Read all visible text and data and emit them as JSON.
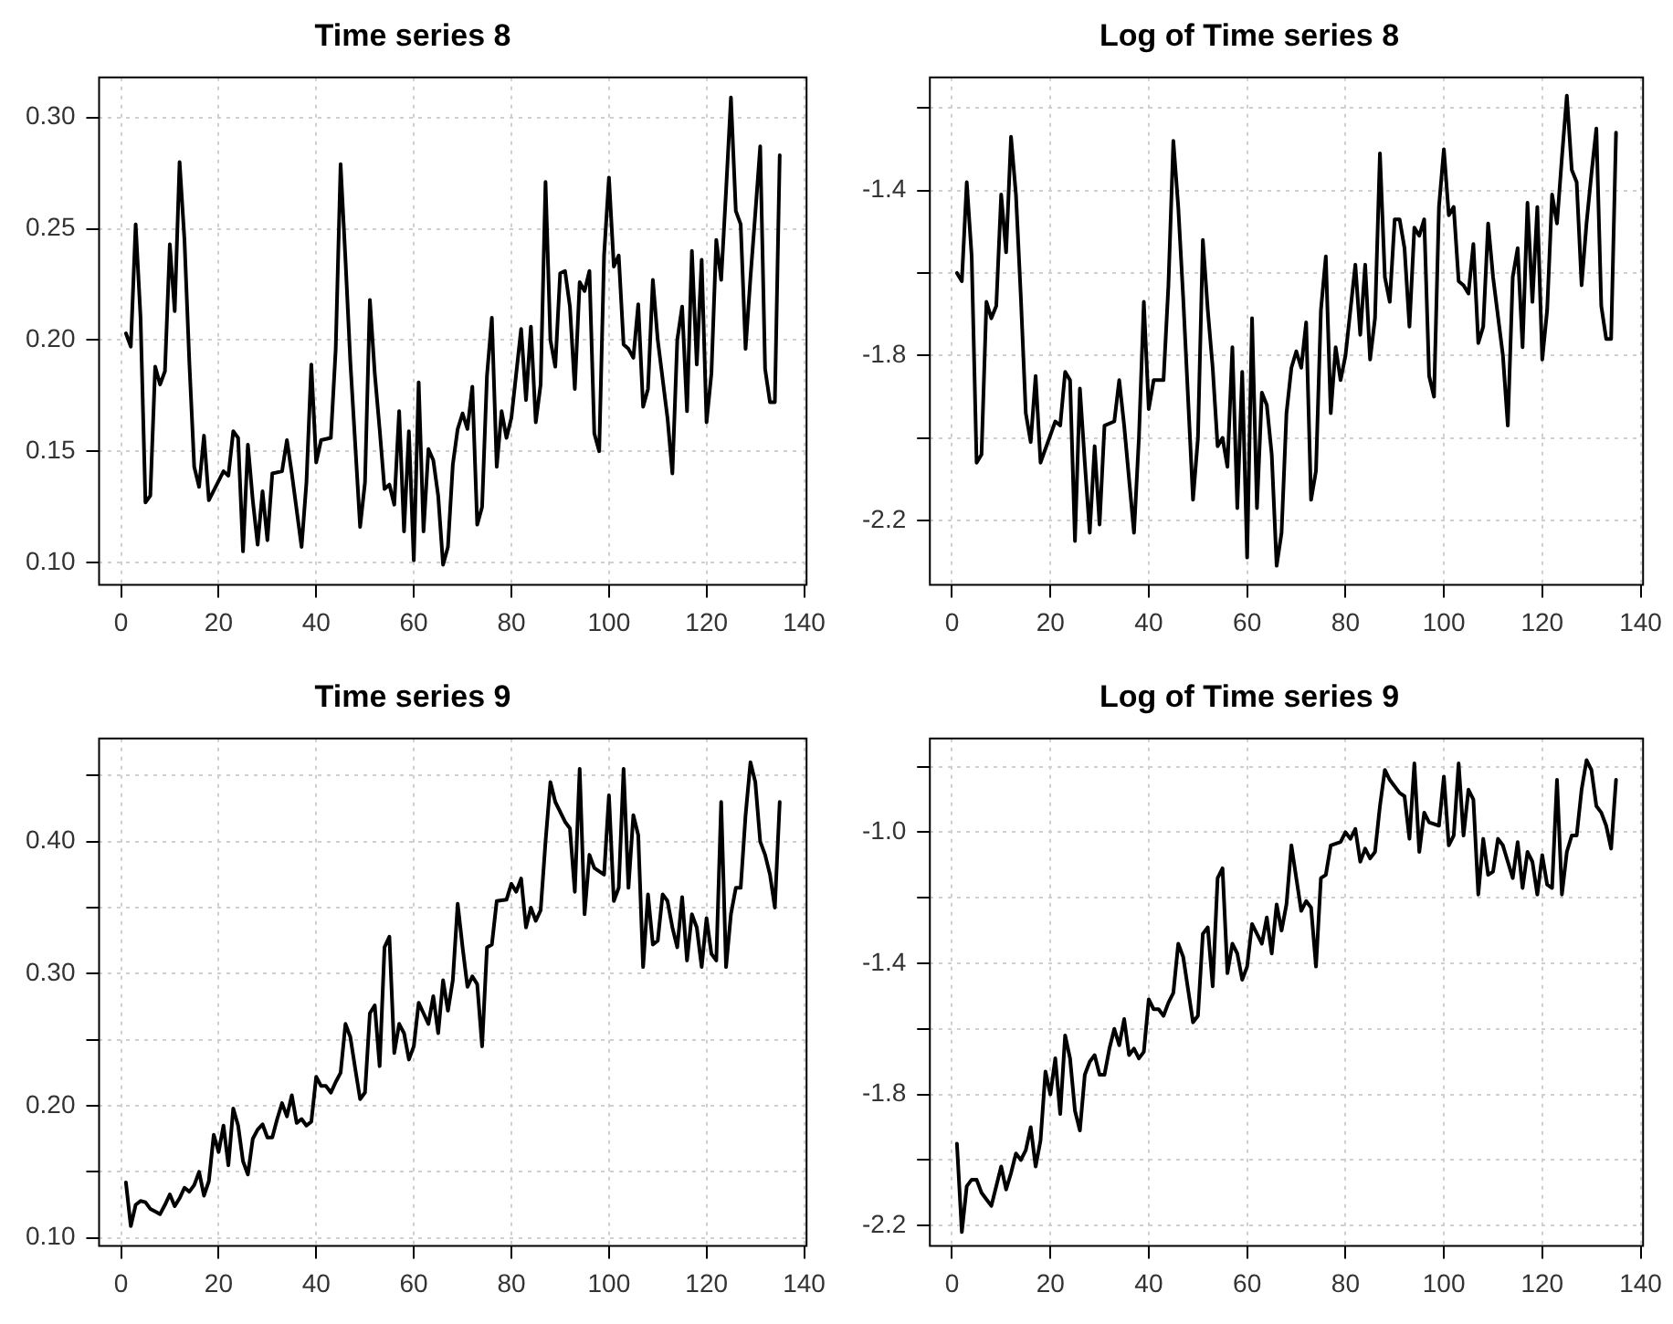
{
  "chart_data": [
    {
      "type": "line",
      "title": "Time series 8",
      "color": "#000000",
      "grid": true,
      "x": [
        1,
        2,
        3,
        4,
        5,
        6,
        7,
        8,
        9,
        10,
        11,
        12,
        13,
        14,
        15,
        16,
        17,
        18,
        21,
        22,
        23,
        24,
        25,
        26,
        27,
        28,
        29,
        30,
        31,
        33,
        34,
        35,
        37,
        38,
        39,
        40,
        41,
        43,
        44,
        45,
        46,
        47,
        49,
        50,
        51,
        52,
        53,
        54,
        55,
        56,
        57,
        58,
        59,
        60,
        61,
        62,
        63,
        64,
        65,
        66,
        67,
        68,
        69,
        70,
        71,
        72,
        73,
        74,
        75,
        76,
        77,
        78,
        79,
        80,
        82,
        83,
        84,
        85,
        86,
        87,
        88,
        89,
        90,
        91,
        92,
        93,
        94,
        95,
        96,
        97,
        98,
        99,
        100,
        101,
        102,
        103,
        104,
        105,
        106,
        107,
        108,
        109,
        110,
        112,
        113,
        114,
        115,
        116,
        117,
        118,
        119,
        120,
        121,
        122,
        123,
        124,
        125,
        126,
        127,
        128,
        129,
        130,
        131,
        132,
        133,
        134,
        135
      ],
      "values": [
        0.203,
        0.197,
        0.252,
        0.21,
        0.127,
        0.13,
        0.188,
        0.18,
        0.186,
        0.243,
        0.213,
        0.28,
        0.245,
        0.19,
        0.143,
        0.134,
        0.157,
        0.128,
        0.141,
        0.139,
        0.159,
        0.156,
        0.105,
        0.153,
        0.128,
        0.108,
        0.132,
        0.11,
        0.14,
        0.141,
        0.155,
        0.14,
        0.107,
        0.136,
        0.189,
        0.145,
        0.155,
        0.156,
        0.196,
        0.279,
        0.236,
        0.19,
        0.116,
        0.136,
        0.218,
        0.185,
        0.16,
        0.133,
        0.135,
        0.126,
        0.168,
        0.114,
        0.159,
        0.101,
        0.181,
        0.114,
        0.151,
        0.146,
        0.13,
        0.099,
        0.107,
        0.144,
        0.16,
        0.167,
        0.16,
        0.179,
        0.117,
        0.125,
        0.184,
        0.21,
        0.143,
        0.168,
        0.156,
        0.165,
        0.205,
        0.173,
        0.206,
        0.163,
        0.18,
        0.271,
        0.2,
        0.188,
        0.23,
        0.231,
        0.215,
        0.178,
        0.226,
        0.222,
        0.231,
        0.158,
        0.15,
        0.238,
        0.273,
        0.233,
        0.238,
        0.198,
        0.196,
        0.192,
        0.216,
        0.17,
        0.178,
        0.227,
        0.2,
        0.165,
        0.14,
        0.2,
        0.215,
        0.168,
        0.24,
        0.189,
        0.236,
        0.163,
        0.185,
        0.245,
        0.227,
        0.267,
        0.309,
        0.258,
        0.252,
        0.196,
        0.228,
        0.257,
        0.287,
        0.187,
        0.172,
        0.172,
        0.283
      ],
      "xlim": [
        -4.5,
        140.5
      ],
      "xticks": [
        0,
        20,
        40,
        60,
        80,
        100,
        120,
        140
      ],
      "ylim": [
        0.09,
        0.318
      ],
      "yticks": [
        {
          "value": 0.1,
          "label": "0.10"
        },
        0.15,
        {
          "value": 0.2,
          "label": "0.20"
        },
        0.25,
        {
          "value": 0.3,
          "label": "0.30"
        }
      ]
    },
    {
      "type": "line",
      "title": "Log of Time series 8",
      "color": "#000000",
      "grid": true,
      "x": [
        1,
        2,
        3,
        4,
        5,
        6,
        7,
        8,
        9,
        10,
        11,
        12,
        13,
        14,
        15,
        16,
        17,
        18,
        21,
        22,
        23,
        24,
        25,
        26,
        27,
        28,
        29,
        30,
        31,
        33,
        34,
        35,
        37,
        38,
        39,
        40,
        41,
        43,
        44,
        45,
        46,
        47,
        49,
        50,
        51,
        52,
        53,
        54,
        55,
        56,
        57,
        58,
        59,
        60,
        61,
        62,
        63,
        64,
        65,
        66,
        67,
        68,
        69,
        70,
        71,
        72,
        73,
        74,
        75,
        76,
        77,
        78,
        79,
        80,
        82,
        83,
        84,
        85,
        86,
        87,
        88,
        89,
        90,
        91,
        92,
        93,
        94,
        95,
        96,
        97,
        98,
        99,
        100,
        101,
        102,
        103,
        104,
        105,
        106,
        107,
        108,
        109,
        110,
        112,
        113,
        114,
        115,
        116,
        117,
        118,
        119,
        120,
        121,
        122,
        123,
        124,
        125,
        126,
        127,
        128,
        129,
        130,
        131,
        132,
        133,
        134,
        135
      ],
      "values": [
        -1.6,
        -1.62,
        -1.38,
        -1.56,
        -2.06,
        -2.04,
        -1.67,
        -1.71,
        -1.68,
        -1.41,
        -1.55,
        -1.27,
        -1.41,
        -1.66,
        -1.94,
        -2.01,
        -1.85,
        -2.06,
        -1.96,
        -1.97,
        -1.84,
        -1.86,
        -2.25,
        -1.88,
        -2.06,
        -2.23,
        -2.02,
        -2.21,
        -1.97,
        -1.96,
        -1.86,
        -1.97,
        -2.23,
        -2.0,
        -1.67,
        -1.93,
        -1.86,
        -1.86,
        -1.63,
        -1.28,
        -1.44,
        -1.66,
        -2.15,
        -2.0,
        -1.52,
        -1.69,
        -1.83,
        -2.02,
        -2.0,
        -2.07,
        -1.78,
        -2.17,
        -1.84,
        -2.29,
        -1.71,
        -2.17,
        -1.89,
        -1.92,
        -2.04,
        -2.31,
        -2.23,
        -1.94,
        -1.83,
        -1.79,
        -1.83,
        -1.72,
        -2.15,
        -2.08,
        -1.69,
        -1.56,
        -1.94,
        -1.78,
        -1.86,
        -1.8,
        -1.58,
        -1.75,
        -1.58,
        -1.81,
        -1.71,
        -1.31,
        -1.61,
        -1.67,
        -1.47,
        -1.47,
        -1.54,
        -1.73,
        -1.49,
        -1.51,
        -1.47,
        -1.85,
        -1.9,
        -1.44,
        -1.3,
        -1.46,
        -1.44,
        -1.62,
        -1.63,
        -1.65,
        -1.53,
        -1.77,
        -1.73,
        -1.48,
        -1.61,
        -1.8,
        -1.97,
        -1.61,
        -1.54,
        -1.78,
        -1.43,
        -1.67,
        -1.44,
        -1.81,
        -1.69,
        -1.41,
        -1.48,
        -1.32,
        -1.17,
        -1.35,
        -1.38,
        -1.63,
        -1.48,
        -1.36,
        -1.25,
        -1.68,
        -1.76,
        -1.76,
        -1.26
      ],
      "xlim": [
        -4.5,
        140.5
      ],
      "xticks": [
        0,
        20,
        40,
        60,
        80,
        100,
        120,
        140
      ],
      "ylim": [
        -2.356,
        -1.126
      ],
      "yticks": [
        -2.2,
        {
          "value": -2.0,
          "label": null
        },
        -1.8,
        {
          "value": -1.6,
          "label": null
        },
        -1.4,
        {
          "value": -1.2,
          "label": null
        }
      ]
    },
    {
      "type": "line",
      "title": "Time series 9",
      "color": "#000000",
      "grid": true,
      "x": [
        1,
        2,
        3,
        4,
        5,
        6,
        7,
        8,
        9,
        10,
        11,
        12,
        13,
        14,
        15,
        16,
        17,
        18,
        19,
        20,
        21,
        22,
        23,
        24,
        25,
        26,
        27,
        28,
        29,
        30,
        31,
        32,
        33,
        34,
        35,
        36,
        37,
        38,
        39,
        40,
        41,
        42,
        43,
        44,
        45,
        46,
        47,
        48,
        49,
        50,
        51,
        52,
        53,
        54,
        55,
        56,
        57,
        58,
        59,
        60,
        61,
        62,
        63,
        64,
        65,
        66,
        67,
        68,
        69,
        70,
        71,
        72,
        73,
        74,
        75,
        76,
        77,
        79,
        80,
        81,
        82,
        83,
        84,
        85,
        86,
        87,
        88,
        89,
        91,
        92,
        93,
        94,
        95,
        96,
        97,
        99,
        100,
        101,
        102,
        103,
        104,
        105,
        106,
        107,
        108,
        109,
        110,
        111,
        112,
        113,
        114,
        115,
        116,
        117,
        118,
        119,
        120,
        121,
        122,
        123,
        124,
        125,
        126,
        127,
        128,
        129,
        130,
        131,
        132,
        133,
        134,
        135
      ],
      "values": [
        0.142,
        0.109,
        0.125,
        0.128,
        0.127,
        0.122,
        0.12,
        0.118,
        0.125,
        0.133,
        0.124,
        0.13,
        0.138,
        0.135,
        0.14,
        0.15,
        0.132,
        0.143,
        0.178,
        0.165,
        0.185,
        0.155,
        0.198,
        0.185,
        0.158,
        0.148,
        0.175,
        0.182,
        0.186,
        0.176,
        0.176,
        0.19,
        0.202,
        0.192,
        0.208,
        0.187,
        0.19,
        0.185,
        0.188,
        0.222,
        0.215,
        0.215,
        0.21,
        0.218,
        0.225,
        0.262,
        0.252,
        0.228,
        0.205,
        0.21,
        0.27,
        0.276,
        0.23,
        0.32,
        0.328,
        0.24,
        0.262,
        0.255,
        0.235,
        0.245,
        0.278,
        0.27,
        0.262,
        0.283,
        0.255,
        0.295,
        0.272,
        0.295,
        0.353,
        0.32,
        0.29,
        0.298,
        0.292,
        0.245,
        0.32,
        0.322,
        0.355,
        0.356,
        0.368,
        0.362,
        0.372,
        0.335,
        0.35,
        0.34,
        0.348,
        0.4,
        0.445,
        0.43,
        0.415,
        0.41,
        0.362,
        0.455,
        0.345,
        0.39,
        0.38,
        0.375,
        0.435,
        0.355,
        0.365,
        0.455,
        0.365,
        0.42,
        0.405,
        0.305,
        0.36,
        0.322,
        0.325,
        0.36,
        0.355,
        0.335,
        0.32,
        0.358,
        0.31,
        0.345,
        0.335,
        0.305,
        0.342,
        0.315,
        0.31,
        0.43,
        0.305,
        0.345,
        0.365,
        0.365,
        0.42,
        0.46,
        0.445,
        0.4,
        0.39,
        0.375,
        0.35,
        0.43
      ],
      "xlim": [
        -4.5,
        140.5
      ],
      "xticks": [
        0,
        20,
        40,
        60,
        80,
        100,
        120,
        140
      ],
      "ylim": [
        0.094,
        0.478
      ],
      "yticks": [
        {
          "value": 0.1,
          "label": "0.10"
        },
        {
          "value": 0.15,
          "label": null
        },
        {
          "value": 0.2,
          "label": "0.20"
        },
        {
          "value": 0.25,
          "label": null
        },
        {
          "value": 0.3,
          "label": "0.30"
        },
        {
          "value": 0.35,
          "label": null
        },
        {
          "value": 0.4,
          "label": "0.40"
        },
        {
          "value": 0.45,
          "label": null
        }
      ]
    },
    {
      "type": "line",
      "title": "Log of Time series 9",
      "color": "#000000",
      "grid": true,
      "x": [
        1,
        2,
        3,
        4,
        5,
        6,
        7,
        8,
        9,
        10,
        11,
        12,
        13,
        14,
        15,
        16,
        17,
        18,
        19,
        20,
        21,
        22,
        23,
        24,
        25,
        26,
        27,
        28,
        29,
        30,
        31,
        32,
        33,
        34,
        35,
        36,
        37,
        38,
        39,
        40,
        41,
        42,
        43,
        44,
        45,
        46,
        47,
        48,
        49,
        50,
        51,
        52,
        53,
        54,
        55,
        56,
        57,
        58,
        59,
        60,
        61,
        62,
        63,
        64,
        65,
        66,
        67,
        68,
        69,
        70,
        71,
        72,
        73,
        74,
        75,
        76,
        77,
        79,
        80,
        81,
        82,
        83,
        84,
        85,
        86,
        87,
        88,
        89,
        91,
        92,
        93,
        94,
        95,
        96,
        97,
        99,
        100,
        101,
        102,
        103,
        104,
        105,
        106,
        107,
        108,
        109,
        110,
        111,
        112,
        113,
        114,
        115,
        116,
        117,
        118,
        119,
        120,
        121,
        122,
        123,
        124,
        125,
        126,
        127,
        128,
        129,
        130,
        131,
        132,
        133,
        134,
        135
      ],
      "values": [
        -1.95,
        -2.22,
        -2.08,
        -2.06,
        -2.06,
        -2.1,
        -2.12,
        -2.14,
        -2.08,
        -2.02,
        -2.09,
        -2.04,
        -1.98,
        -2.0,
        -1.97,
        -1.9,
        -2.02,
        -1.94,
        -1.73,
        -1.8,
        -1.69,
        -1.86,
        -1.62,
        -1.69,
        -1.85,
        -1.91,
        -1.74,
        -1.7,
        -1.68,
        -1.74,
        -1.74,
        -1.66,
        -1.6,
        -1.65,
        -1.57,
        -1.68,
        -1.66,
        -1.69,
        -1.67,
        -1.51,
        -1.54,
        -1.54,
        -1.56,
        -1.52,
        -1.49,
        -1.34,
        -1.38,
        -1.48,
        -1.58,
        -1.56,
        -1.31,
        -1.29,
        -1.47,
        -1.14,
        -1.11,
        -1.43,
        -1.34,
        -1.37,
        -1.45,
        -1.41,
        -1.28,
        -1.31,
        -1.34,
        -1.26,
        -1.37,
        -1.22,
        -1.3,
        -1.22,
        -1.04,
        -1.14,
        -1.24,
        -1.21,
        -1.23,
        -1.41,
        -1.14,
        -1.13,
        -1.04,
        -1.03,
        -1.0,
        -1.02,
        -0.99,
        -1.09,
        -1.05,
        -1.08,
        -1.06,
        -0.92,
        -0.81,
        -0.84,
        -0.88,
        -0.89,
        -1.02,
        -0.79,
        -1.06,
        -0.94,
        -0.97,
        -0.98,
        -0.83,
        -1.04,
        -1.01,
        -0.79,
        -1.01,
        -0.87,
        -0.9,
        -1.19,
        -1.02,
        -1.13,
        -1.12,
        -1.02,
        -1.04,
        -1.09,
        -1.14,
        -1.03,
        -1.17,
        -1.06,
        -1.09,
        -1.19,
        -1.07,
        -1.16,
        -1.17,
        -0.84,
        -1.19,
        -1.06,
        -1.01,
        -1.01,
        -0.87,
        -0.78,
        -0.81,
        -0.92,
        -0.94,
        -0.98,
        -1.05,
        -0.84
      ],
      "xlim": [
        -4.5,
        140.5
      ],
      "xticks": [
        0,
        20,
        40,
        60,
        80,
        100,
        120,
        140
      ],
      "ylim": [
        -2.262,
        -0.714
      ],
      "yticks": [
        -2.2,
        {
          "value": -2.0,
          "label": null
        },
        -1.8,
        {
          "value": -1.6,
          "label": null
        },
        -1.4,
        {
          "value": -1.2,
          "label": null
        },
        {
          "value": -1.0,
          "label": "-1.0"
        },
        {
          "value": -0.8,
          "label": null
        }
      ]
    }
  ]
}
